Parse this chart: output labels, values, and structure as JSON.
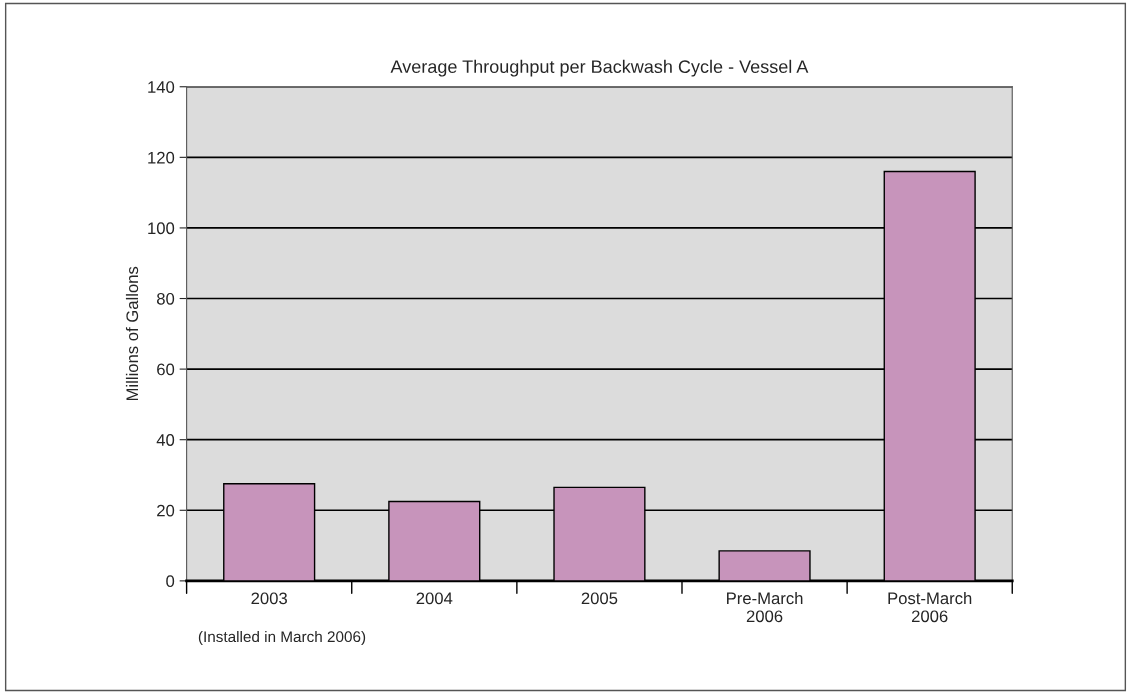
{
  "chart_data": {
    "type": "bar",
    "title": "Average Throughput per Backwash Cycle - Vessel A",
    "ylabel": "Millions of Gallons",
    "categories": [
      "2003",
      "2004",
      "2005",
      "Pre-March\n2006",
      "Post-March\n2006"
    ],
    "values": [
      27.5,
      22.5,
      26.5,
      8.5,
      116
    ],
    "color": "#c794bb",
    "ylim": [
      0,
      140
    ],
    "yticks": [
      0,
      20,
      40,
      60,
      80,
      100,
      120,
      140
    ],
    "grid": "y",
    "legend": false,
    "annotations": [
      "(Installed in March 2006)"
    ]
  }
}
